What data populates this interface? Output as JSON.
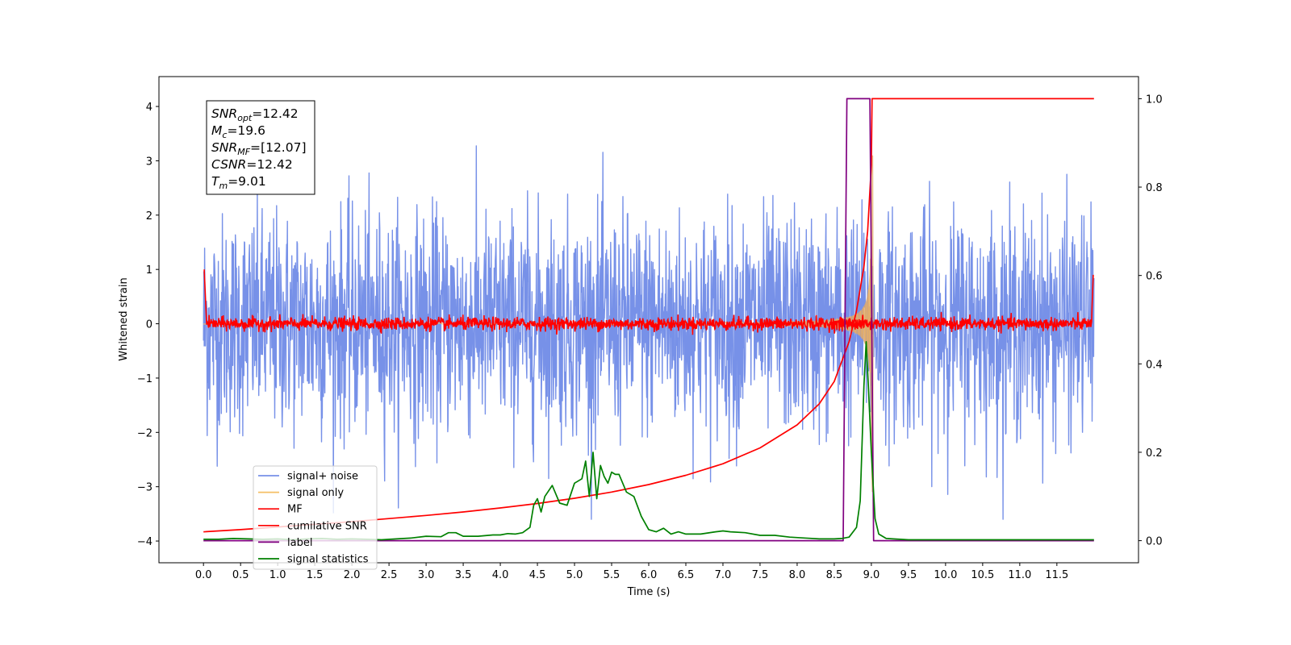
{
  "chart_data": {
    "type": "line",
    "xlabel": "Time (s)",
    "ylabel": "Whitened strain",
    "xlim": [
      -0.6,
      12.6
    ],
    "ylim_left": [
      -4.4,
      4.55
    ],
    "ylim_right": [
      -0.05,
      1.05
    ],
    "x_ticks": [
      0.0,
      0.5,
      1.0,
      1.5,
      2.0,
      2.5,
      3.0,
      3.5,
      4.0,
      4.5,
      5.0,
      5.5,
      6.0,
      6.5,
      7.0,
      7.5,
      8.0,
      8.5,
      9.0,
      9.5,
      10.0,
      10.5,
      11.0,
      11.5
    ],
    "x_tick_labels": [
      "0.0",
      "0.5",
      "1.0",
      "1.5",
      "2.0",
      "2.5",
      "3.0",
      "3.5",
      "4.0",
      "4.5",
      "5.0",
      "5.5",
      "6.0",
      "6.5",
      "7.0",
      "7.5",
      "8.0",
      "8.5",
      "9.0",
      "9.5",
      "10.0",
      "10.5",
      "11.0",
      "11.5"
    ],
    "y_left_ticks": [
      -4,
      -3,
      -2,
      -1,
      0,
      1,
      2,
      3,
      4
    ],
    "y_left_tick_labels": [
      "−4",
      "−3",
      "−2",
      "−1",
      "0",
      "1",
      "2",
      "3",
      "4"
    ],
    "y_right_ticks": [
      0.0,
      0.2,
      0.4,
      0.6,
      0.8,
      1.0
    ],
    "y_right_tick_labels": [
      "0.0",
      "0.2",
      "0.4",
      "0.6",
      "0.8",
      "1.0"
    ],
    "grid": false,
    "legend_position": "bottom-left",
    "annotation": {
      "lines": [
        {
          "base": "SNR",
          "sub": "opt",
          "value": "=12.42"
        },
        {
          "base": "M",
          "sub": "c",
          "value": "=19.6"
        },
        {
          "base": "SNR",
          "sub": "MF",
          "value": "=[12.07]"
        },
        {
          "base": "CSNR",
          "sub": "",
          "value": "=12.42"
        },
        {
          "base": "T",
          "sub": "m",
          "value": "=9.01"
        }
      ]
    },
    "series": [
      {
        "name": "signal+ noise",
        "color": "#7791e8",
        "axis": "left",
        "description_kind": "noise",
        "amplitude_std": 1.0,
        "x_range": [
          0.0,
          12.0
        ]
      },
      {
        "name": "signal only",
        "color": "#f5bf66",
        "axis": "left",
        "description_kind": "chirp",
        "merger_time": 9.01,
        "peak_amplitude": 3.1
      },
      {
        "name": "MF",
        "color": "#ff0000",
        "axis": "left",
        "description_kind": "small-noise",
        "amplitude_std": 0.06
      },
      {
        "name": "cumilative SNR",
        "color": "#ff0000",
        "axis": "right",
        "x": [
          0.0,
          0.5,
          1.0,
          1.5,
          2.0,
          2.5,
          3.0,
          3.5,
          4.0,
          4.5,
          5.0,
          5.5,
          6.0,
          6.5,
          7.0,
          7.5,
          8.0,
          8.3,
          8.5,
          8.7,
          8.8,
          8.9,
          8.95,
          9.0,
          9.01,
          12.0
        ],
        "values": [
          0.02,
          0.025,
          0.031,
          0.037,
          0.043,
          0.05,
          0.057,
          0.065,
          0.074,
          0.084,
          0.096,
          0.11,
          0.127,
          0.148,
          0.174,
          0.21,
          0.262,
          0.31,
          0.36,
          0.45,
          0.52,
          0.62,
          0.7,
          0.85,
          1.0,
          1.0
        ]
      },
      {
        "name": "label",
        "color": "#800080",
        "axis": "right",
        "x": [
          0.0,
          8.62,
          8.67,
          8.98,
          9.03,
          12.0
        ],
        "values": [
          0.0,
          0.0,
          1.0,
          1.0,
          0.0,
          0.0
        ]
      },
      {
        "name": "signal statistics",
        "color": "#008000",
        "axis": "right",
        "x": [
          0.0,
          0.2,
          0.4,
          0.6,
          0.8,
          1.0,
          1.2,
          1.4,
          1.6,
          1.8,
          2.0,
          2.2,
          2.4,
          2.6,
          2.8,
          3.0,
          3.2,
          3.3,
          3.4,
          3.5,
          3.7,
          3.9,
          4.0,
          4.1,
          4.2,
          4.3,
          4.4,
          4.45,
          4.5,
          4.55,
          4.6,
          4.7,
          4.8,
          4.9,
          5.0,
          5.1,
          5.15,
          5.2,
          5.25,
          5.3,
          5.35,
          5.4,
          5.45,
          5.5,
          5.55,
          5.6,
          5.7,
          5.8,
          5.9,
          6.0,
          6.1,
          6.2,
          6.3,
          6.4,
          6.5,
          6.7,
          6.9,
          7.0,
          7.1,
          7.3,
          7.5,
          7.7,
          7.9,
          8.1,
          8.3,
          8.5,
          8.6,
          8.7,
          8.8,
          8.85,
          8.9,
          8.93,
          8.96,
          9.0,
          9.05,
          9.1,
          9.2,
          9.5,
          10.0,
          11.0,
          12.0
        ],
        "values": [
          0.003,
          0.003,
          0.005,
          0.004,
          0.003,
          0.004,
          0.002,
          0.004,
          0.005,
          0.003,
          0.004,
          0.003,
          0.002,
          0.004,
          0.006,
          0.01,
          0.009,
          0.018,
          0.018,
          0.01,
          0.01,
          0.013,
          0.013,
          0.016,
          0.015,
          0.018,
          0.03,
          0.08,
          0.095,
          0.065,
          0.1,
          0.125,
          0.085,
          0.08,
          0.13,
          0.14,
          0.18,
          0.1,
          0.2,
          0.095,
          0.17,
          0.145,
          0.13,
          0.155,
          0.15,
          0.15,
          0.11,
          0.1,
          0.055,
          0.025,
          0.02,
          0.028,
          0.015,
          0.02,
          0.015,
          0.015,
          0.02,
          0.022,
          0.02,
          0.018,
          0.012,
          0.012,
          0.008,
          0.006,
          0.004,
          0.004,
          0.005,
          0.008,
          0.03,
          0.09,
          0.35,
          0.45,
          0.35,
          0.2,
          0.05,
          0.015,
          0.005,
          0.002,
          0.002,
          0.002,
          0.002
        ]
      }
    ]
  }
}
